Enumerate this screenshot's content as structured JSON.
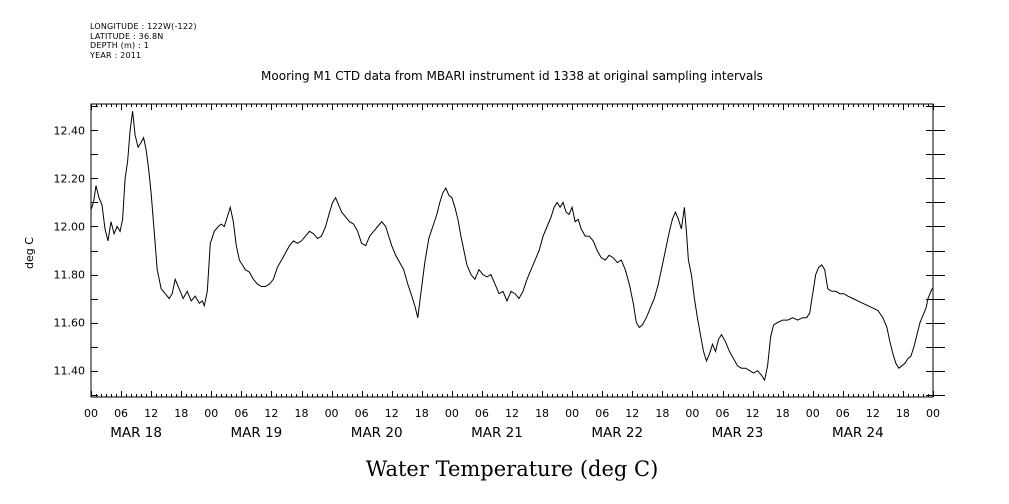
{
  "meta": {
    "longitude": "LONGITUDE : 122W(-122)",
    "latitude": "LATITUDE : 36.8N",
    "depth": "DEPTH (m) : 1",
    "year": "YEAR : 2011"
  },
  "chart_data": {
    "type": "line",
    "title": "Mooring M1 CTD data from MBARI instrument id 1338 at original sampling intervals",
    "xlabel": "Water Temperature (deg C)",
    "ylabel": "deg C",
    "xlim": [
      0,
      168
    ],
    "ylim": [
      11.29,
      12.51
    ],
    "y_ticks": [
      11.4,
      11.6,
      11.8,
      12.0,
      12.2,
      12.4
    ],
    "y_tick_labels": [
      "11.40",
      "11.60",
      "11.80",
      "12.00",
      "12.20",
      "12.40"
    ],
    "hour_tick_labels": [
      "00",
      "06",
      "12",
      "18",
      "00",
      "06",
      "12",
      "18",
      "00",
      "06",
      "12",
      "18",
      "00",
      "06",
      "12",
      "18",
      "00",
      "06",
      "12",
      "18",
      "00",
      "06",
      "12",
      "18",
      "00",
      "06",
      "12",
      "18",
      "00"
    ],
    "day_labels": [
      "MAR 18",
      "MAR 19",
      "MAR 20",
      "MAR 21",
      "MAR 22",
      "MAR 23",
      "MAR 24"
    ],
    "grid": false,
    "series": [
      {
        "color": "#000000",
        "points": [
          [
            0,
            12.07
          ],
          [
            0.5,
            12.1
          ],
          [
            1,
            12.17
          ],
          [
            1.6,
            12.12
          ],
          [
            2.2,
            12.09
          ],
          [
            2.8,
            11.99
          ],
          [
            3.4,
            11.94
          ],
          [
            4,
            12.02
          ],
          [
            4.6,
            11.97
          ],
          [
            5.2,
            12.0
          ],
          [
            5.8,
            11.98
          ],
          [
            6.3,
            12.03
          ],
          [
            6.8,
            12.2
          ],
          [
            7.3,
            12.27
          ],
          [
            7.8,
            12.4
          ],
          [
            8.3,
            12.48
          ],
          [
            8.8,
            12.38
          ],
          [
            9.4,
            12.33
          ],
          [
            10,
            12.35
          ],
          [
            10.5,
            12.37
          ],
          [
            11,
            12.32
          ],
          [
            11.5,
            12.24
          ],
          [
            12,
            12.14
          ],
          [
            12.6,
            11.98
          ],
          [
            13.2,
            11.82
          ],
          [
            14,
            11.74
          ],
          [
            14.8,
            11.72
          ],
          [
            15.6,
            11.7
          ],
          [
            16.2,
            11.72
          ],
          [
            16.8,
            11.78
          ],
          [
            17.6,
            11.74
          ],
          [
            18.4,
            11.7
          ],
          [
            19.2,
            11.73
          ],
          [
            20,
            11.69
          ],
          [
            20.8,
            11.71
          ],
          [
            21.6,
            11.68
          ],
          [
            22.2,
            11.69
          ],
          [
            22.6,
            11.67
          ],
          [
            23.2,
            11.73
          ],
          [
            23.8,
            11.93
          ],
          [
            24.6,
            11.98
          ],
          [
            25.4,
            12.0
          ],
          [
            26,
            12.01
          ],
          [
            26.6,
            12.0
          ],
          [
            27.2,
            12.04
          ],
          [
            27.8,
            12.08
          ],
          [
            28.4,
            12.02
          ],
          [
            29,
            11.92
          ],
          [
            29.6,
            11.86
          ],
          [
            30.2,
            11.84
          ],
          [
            30.8,
            11.82
          ],
          [
            31.6,
            11.81
          ],
          [
            32.4,
            11.78
          ],
          [
            33.2,
            11.76
          ],
          [
            34,
            11.75
          ],
          [
            34.8,
            11.75
          ],
          [
            35.6,
            11.76
          ],
          [
            36.4,
            11.78
          ],
          [
            37.2,
            11.83
          ],
          [
            38,
            11.86
          ],
          [
            38.8,
            11.89
          ],
          [
            39.6,
            11.92
          ],
          [
            40.4,
            11.94
          ],
          [
            41.2,
            11.93
          ],
          [
            42,
            11.94
          ],
          [
            42.8,
            11.96
          ],
          [
            43.6,
            11.98
          ],
          [
            44.4,
            11.97
          ],
          [
            45.2,
            11.95
          ],
          [
            46,
            11.96
          ],
          [
            46.8,
            12.0
          ],
          [
            47.6,
            12.06
          ],
          [
            48.2,
            12.1
          ],
          [
            48.8,
            12.12
          ],
          [
            49.4,
            12.09
          ],
          [
            50,
            12.06
          ],
          [
            50.8,
            12.04
          ],
          [
            51.6,
            12.02
          ],
          [
            52.4,
            12.01
          ],
          [
            53.2,
            11.98
          ],
          [
            54,
            11.93
          ],
          [
            54.8,
            11.92
          ],
          [
            55.6,
            11.96
          ],
          [
            56.4,
            11.98
          ],
          [
            57.2,
            12.0
          ],
          [
            58,
            12.02
          ],
          [
            58.8,
            12.0
          ],
          [
            59.4,
            11.96
          ],
          [
            60,
            11.92
          ],
          [
            60.8,
            11.88
          ],
          [
            61.6,
            11.85
          ],
          [
            62.4,
            11.82
          ],
          [
            63.2,
            11.76
          ],
          [
            64,
            11.71
          ],
          [
            64.6,
            11.67
          ],
          [
            65.2,
            11.62
          ],
          [
            65.8,
            11.72
          ],
          [
            66.6,
            11.85
          ],
          [
            67.4,
            11.95
          ],
          [
            68.2,
            12.0
          ],
          [
            69,
            12.05
          ],
          [
            69.6,
            12.1
          ],
          [
            70.2,
            12.14
          ],
          [
            70.8,
            12.16
          ],
          [
            71.4,
            12.13
          ],
          [
            72,
            12.12
          ],
          [
            72.6,
            12.08
          ],
          [
            73.2,
            12.03
          ],
          [
            73.8,
            11.96
          ],
          [
            74.4,
            11.9
          ],
          [
            75,
            11.84
          ],
          [
            75.8,
            11.8
          ],
          [
            76.6,
            11.78
          ],
          [
            77.4,
            11.82
          ],
          [
            78.2,
            11.8
          ],
          [
            79,
            11.79
          ],
          [
            79.8,
            11.8
          ],
          [
            80.6,
            11.76
          ],
          [
            81.4,
            11.72
          ],
          [
            82.2,
            11.73
          ],
          [
            83,
            11.69
          ],
          [
            83.8,
            11.73
          ],
          [
            84.6,
            11.72
          ],
          [
            85.4,
            11.7
          ],
          [
            86.2,
            11.73
          ],
          [
            87,
            11.78
          ],
          [
            87.8,
            11.82
          ],
          [
            88.6,
            11.86
          ],
          [
            89.4,
            11.9
          ],
          [
            90.2,
            11.96
          ],
          [
            91,
            12.0
          ],
          [
            91.8,
            12.04
          ],
          [
            92.4,
            12.08
          ],
          [
            93,
            12.1
          ],
          [
            93.6,
            12.08
          ],
          [
            94.2,
            12.1
          ],
          [
            94.8,
            12.06
          ],
          [
            95.4,
            12.05
          ],
          [
            96,
            12.08
          ],
          [
            96.6,
            12.02
          ],
          [
            97.2,
            12.03
          ],
          [
            97.8,
            11.99
          ],
          [
            98.6,
            11.96
          ],
          [
            99.4,
            11.96
          ],
          [
            100.2,
            11.94
          ],
          [
            101,
            11.9
          ],
          [
            101.8,
            11.87
          ],
          [
            102.6,
            11.86
          ],
          [
            103.4,
            11.88
          ],
          [
            104.2,
            11.87
          ],
          [
            105,
            11.85
          ],
          [
            105.8,
            11.86
          ],
          [
            106.6,
            11.82
          ],
          [
            107.4,
            11.76
          ],
          [
            108.2,
            11.68
          ],
          [
            108.8,
            11.6
          ],
          [
            109.4,
            11.58
          ],
          [
            110,
            11.59
          ],
          [
            110.8,
            11.62
          ],
          [
            111.6,
            11.66
          ],
          [
            112.4,
            11.7
          ],
          [
            113.2,
            11.76
          ],
          [
            114,
            11.84
          ],
          [
            114.8,
            11.92
          ],
          [
            115.4,
            11.98
          ],
          [
            116,
            12.03
          ],
          [
            116.6,
            12.06
          ],
          [
            117.2,
            12.03
          ],
          [
            117.8,
            11.99
          ],
          [
            118.4,
            12.08
          ],
          [
            118.8,
            11.98
          ],
          [
            119.2,
            11.86
          ],
          [
            119.8,
            11.8
          ],
          [
            120.4,
            11.7
          ],
          [
            121,
            11.62
          ],
          [
            121.6,
            11.55
          ],
          [
            122.2,
            11.48
          ],
          [
            122.8,
            11.44
          ],
          [
            123.4,
            11.47
          ],
          [
            124,
            11.51
          ],
          [
            124.6,
            11.48
          ],
          [
            125.2,
            11.53
          ],
          [
            125.8,
            11.55
          ],
          [
            126.6,
            11.52
          ],
          [
            127.4,
            11.48
          ],
          [
            128.2,
            11.45
          ],
          [
            129,
            11.42
          ],
          [
            129.8,
            11.41
          ],
          [
            130.6,
            11.41
          ],
          [
            131.4,
            11.4
          ],
          [
            132.2,
            11.39
          ],
          [
            133,
            11.4
          ],
          [
            133.8,
            11.38
          ],
          [
            134.4,
            11.36
          ],
          [
            135,
            11.42
          ],
          [
            135.6,
            11.54
          ],
          [
            136.2,
            11.59
          ],
          [
            137,
            11.6
          ],
          [
            138,
            11.61
          ],
          [
            139,
            11.61
          ],
          [
            140,
            11.62
          ],
          [
            141,
            11.61
          ],
          [
            142,
            11.62
          ],
          [
            142.8,
            11.62
          ],
          [
            143.4,
            11.64
          ],
          [
            144,
            11.72
          ],
          [
            144.6,
            11.8
          ],
          [
            145.2,
            11.83
          ],
          [
            145.8,
            11.84
          ],
          [
            146.4,
            11.82
          ],
          [
            147,
            11.74
          ],
          [
            147.8,
            11.73
          ],
          [
            148.6,
            11.73
          ],
          [
            149.4,
            11.72
          ],
          [
            150.2,
            11.72
          ],
          [
            151,
            11.71
          ],
          [
            152,
            11.7
          ],
          [
            153,
            11.69
          ],
          [
            154,
            11.68
          ],
          [
            155,
            11.67
          ],
          [
            156,
            11.66
          ],
          [
            157,
            11.65
          ],
          [
            158,
            11.62
          ],
          [
            158.8,
            11.58
          ],
          [
            159.4,
            11.52
          ],
          [
            160,
            11.47
          ],
          [
            160.6,
            11.43
          ],
          [
            161.2,
            11.41
          ],
          [
            161.8,
            11.42
          ],
          [
            162.4,
            11.43
          ],
          [
            163,
            11.45
          ],
          [
            163.6,
            11.46
          ],
          [
            164.2,
            11.5
          ],
          [
            164.8,
            11.55
          ],
          [
            165.4,
            11.6
          ],
          [
            166,
            11.63
          ],
          [
            166.6,
            11.66
          ],
          [
            167,
            11.7
          ],
          [
            167.4,
            11.72
          ],
          [
            167.8,
            11.74
          ],
          [
            168,
            11.74
          ]
        ]
      }
    ]
  }
}
